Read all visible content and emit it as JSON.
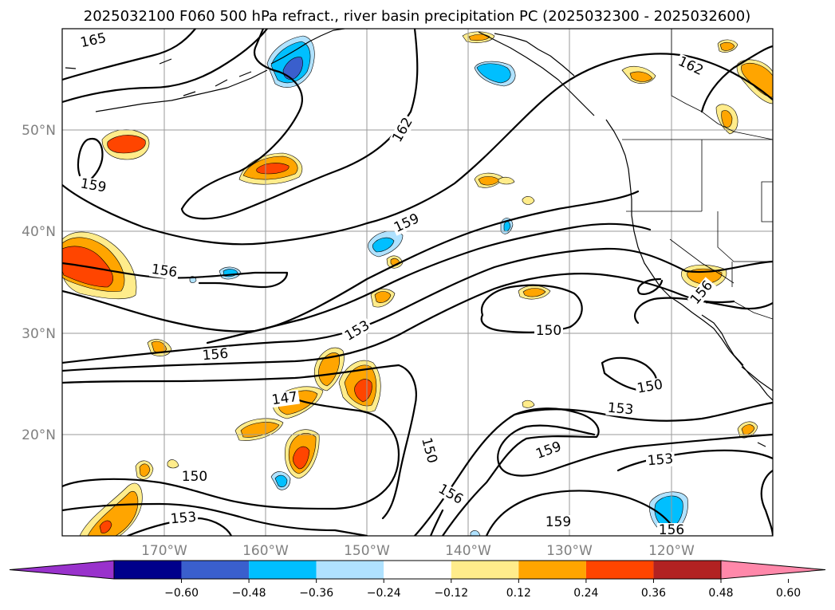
{
  "title": "2025032100 F060 500 hPa refract., river basin precipitation PC (2025032300 - 2025032600)",
  "map": {
    "lat_labels": [
      "50°N",
      "40°N",
      "30°N",
      "20°N"
    ],
    "lon_labels": [
      "170°W",
      "160°W",
      "150°W",
      "140°W",
      "130°W",
      "120°W"
    ],
    "contour_labels": [
      {
        "id": "c1",
        "text": "165"
      },
      {
        "id": "c2",
        "text": "162"
      },
      {
        "id": "c3",
        "text": "162"
      },
      {
        "id": "c4",
        "text": "159"
      },
      {
        "id": "c5",
        "text": "159"
      },
      {
        "id": "c6",
        "text": "156"
      },
      {
        "id": "c7",
        "text": "156"
      },
      {
        "id": "c8",
        "text": "153"
      },
      {
        "id": "c9",
        "text": "150"
      },
      {
        "id": "c10",
        "text": "156"
      },
      {
        "id": "c11",
        "text": "150"
      },
      {
        "id": "c12",
        "text": "147"
      },
      {
        "id": "c13",
        "text": "153"
      },
      {
        "id": "c14",
        "text": "150"
      },
      {
        "id": "c15",
        "text": "159"
      },
      {
        "id": "c16",
        "text": "153"
      },
      {
        "id": "c17",
        "text": "150"
      },
      {
        "id": "c18",
        "text": "156"
      },
      {
        "id": "c19",
        "text": "153"
      },
      {
        "id": "c20",
        "text": "159"
      },
      {
        "id": "c21",
        "text": "156"
      }
    ]
  },
  "colorbar": {
    "ticks": [
      "−0.60",
      "−0.48",
      "−0.36",
      "−0.24",
      "−0.12",
      "0.12",
      "0.24",
      "0.36",
      "0.48",
      "0.60"
    ],
    "colors": [
      "#9932cc",
      "#00008b",
      "#3a5fcd",
      "#00bfff",
      "#b0e2ff",
      "#ffffff",
      "#ffec8b",
      "#ffa500",
      "#ff4500",
      "#b22222",
      "#ff88aa"
    ]
  },
  "palette": {
    "c012": "#ffec8b",
    "c024": "#ffa500",
    "c036": "#ff4500",
    "cn012": "#b0e2ff",
    "cn024": "#00bfff",
    "cn036": "#3a5fcd"
  }
}
